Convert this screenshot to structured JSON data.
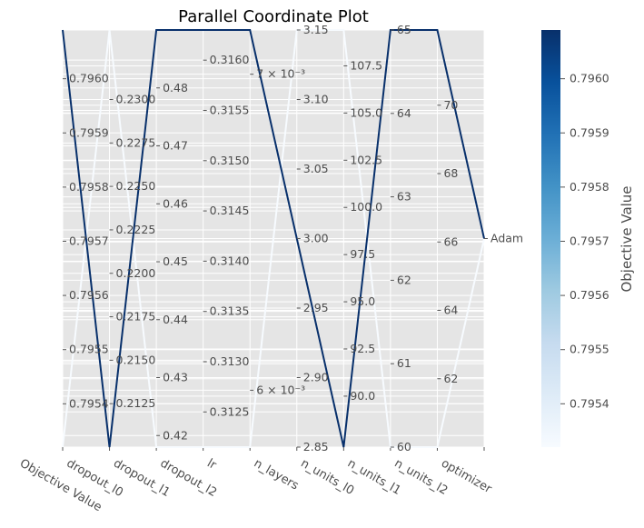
{
  "chart_data": {
    "type": "parallel_coordinates",
    "title": "Parallel Coordinate Plot",
    "axes": [
      {
        "name": "Objective Value",
        "min": 0.79532,
        "max": 0.79609,
        "ticks": [
          "0.7954",
          "0.7955",
          "0.7956",
          "0.7957",
          "0.7958",
          "0.7959",
          "0.7960"
        ],
        "tick_values": [
          0.7954,
          0.7955,
          0.7956,
          0.7957,
          0.7958,
          0.7959,
          0.796
        ]
      },
      {
        "name": "dropout_l0",
        "min": 0.21,
        "max": 0.234,
        "ticks": [
          "0.2125",
          "0.2150",
          "0.2175",
          "0.2200",
          "0.2225",
          "0.2250",
          "0.2275",
          "0.2300"
        ],
        "tick_values": [
          0.2125,
          0.215,
          0.2175,
          0.22,
          0.2225,
          0.225,
          0.2275,
          0.23
        ]
      },
      {
        "name": "dropout_l1",
        "min": 0.418,
        "max": 0.49,
        "ticks": [
          "0.42",
          "0.43",
          "0.44",
          "0.45",
          "0.46",
          "0.47",
          "0.48"
        ],
        "tick_values": [
          0.42,
          0.43,
          0.44,
          0.45,
          0.46,
          0.47,
          0.48
        ]
      },
      {
        "name": "dropout_l2",
        "min": 0.31215,
        "max": 0.3163,
        "ticks": [
          "0.3125",
          "0.3130",
          "0.3135",
          "0.3140",
          "0.3145",
          "0.3150",
          "0.3155",
          "0.3160"
        ],
        "tick_values": [
          0.3125,
          0.313,
          0.3135,
          0.314,
          0.3145,
          0.315,
          0.3155,
          0.316
        ]
      },
      {
        "name": "lr",
        "min": 0.00582,
        "max": 0.00714,
        "ticks": [
          "6 × 10⁻³",
          "7 × 10⁻³"
        ],
        "tick_values": [
          0.006,
          0.007
        ]
      },
      {
        "name": "n_layers",
        "min": 2.85,
        "max": 3.15,
        "ticks": [
          "2.85",
          "2.90",
          "2.95",
          "3.00",
          "3.05",
          "3.10",
          "3.15"
        ],
        "tick_values": [
          2.85,
          2.9,
          2.95,
          3.0,
          3.05,
          3.1,
          3.15
        ]
      },
      {
        "name": "n_units_l0",
        "min": 87.3,
        "max": 109.4,
        "ticks": [
          "90.0",
          "92.5",
          "95.0",
          "97.5",
          "100.0",
          "102.5",
          "105.0",
          "107.5"
        ],
        "tick_values": [
          90,
          92.5,
          95,
          97.5,
          100,
          102.5,
          105,
          107.5
        ]
      },
      {
        "name": "n_units_l1",
        "min": 60,
        "max": 65,
        "ticks": [
          "60",
          "61",
          "62",
          "63",
          "64",
          "65"
        ],
        "tick_values": [
          60,
          61,
          62,
          63,
          64,
          65
        ]
      },
      {
        "name": "n_units_l2",
        "min": 60,
        "max": 72.2,
        "ticks": [
          "62",
          "64",
          "66",
          "68",
          "70"
        ],
        "tick_values": [
          62,
          64,
          66,
          68,
          70
        ]
      },
      {
        "name": "optimizer",
        "min": 0,
        "max": 1,
        "ticks": [
          "Adam"
        ],
        "tick_values": [
          0.5
        ]
      }
    ],
    "trials": [
      {
        "objective": 0.79609,
        "values": [
          0.79609,
          0.21,
          0.49,
          0.3163,
          0.00714,
          3.0,
          87.3,
          65,
          72.2,
          0.5
        ]
      },
      {
        "objective": 0.79532,
        "values": [
          0.79532,
          0.234,
          0.418,
          0.31215,
          0.00582,
          3.15,
          109.4,
          60,
          60,
          0.5
        ]
      }
    ],
    "colorbar": {
      "label": "Objective Value",
      "min": 0.79532,
      "max": 0.79609,
      "ticks": [
        "0.7954",
        "0.7955",
        "0.7956",
        "0.7957",
        "0.7958",
        "0.7959",
        "0.7960"
      ],
      "tick_values": [
        0.7954,
        0.7955,
        0.7956,
        0.7957,
        0.7958,
        0.7959,
        0.796
      ],
      "colors": [
        "#f7fbff",
        "#deebf7",
        "#c6dbef",
        "#9ecae1",
        "#6baed6",
        "#4292c6",
        "#2171b5",
        "#08519c",
        "#08306b"
      ]
    }
  }
}
